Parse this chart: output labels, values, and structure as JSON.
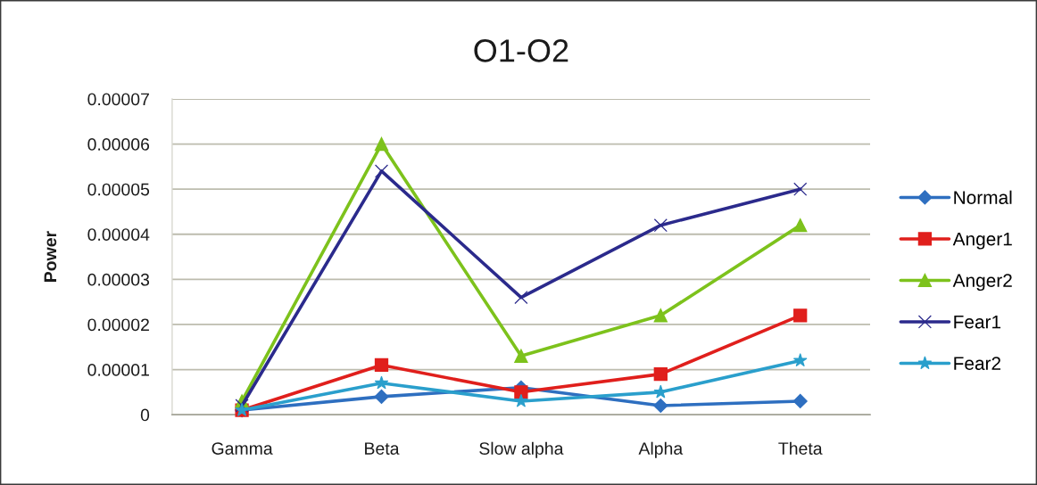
{
  "chart_data": {
    "type": "line",
    "title": "O1-O2",
    "ylabel": "Power",
    "categories": [
      "Gamma",
      "Beta",
      "Slow alpha",
      "Alpha",
      "Theta"
    ],
    "series": [
      {
        "name": "Normal",
        "color": "#2e6fc0",
        "marker": "diamond",
        "values": [
          1e-06,
          4e-06,
          6e-06,
          2e-06,
          3e-06
        ]
      },
      {
        "name": "Anger1",
        "color": "#e01f1c",
        "marker": "square",
        "values": [
          1e-06,
          1.1e-05,
          5e-06,
          9e-06,
          2.2e-05
        ]
      },
      {
        "name": "Anger2",
        "color": "#7dc21c",
        "marker": "triangle",
        "values": [
          3e-06,
          6e-05,
          1.3e-05,
          2.2e-05,
          4.2e-05
        ]
      },
      {
        "name": "Fear1",
        "color": "#2b2a8c",
        "marker": "cross",
        "values": [
          2e-06,
          5.4e-05,
          2.6e-05,
          4.2e-05,
          5e-05
        ]
      },
      {
        "name": "Fear2",
        "color": "#2a9fcc",
        "marker": "star",
        "values": [
          1e-06,
          7e-06,
          3e-06,
          5e-06,
          1.2e-05
        ]
      }
    ],
    "ylim": [
      0,
      7e-05
    ],
    "yticks": [
      {
        "value": 0,
        "label": "0"
      },
      {
        "value": 1e-05,
        "label": "0.00001"
      },
      {
        "value": 2e-05,
        "label": "0.00002"
      },
      {
        "value": 3e-05,
        "label": "0.00003"
      },
      {
        "value": 4e-05,
        "label": "0.00004"
      },
      {
        "value": 5e-05,
        "label": "0.00005"
      },
      {
        "value": 6e-05,
        "label": "0.00006"
      },
      {
        "value": 7e-05,
        "label": "0.00007"
      }
    ],
    "grid": "y",
    "legend": "right",
    "line_style": "solid"
  }
}
